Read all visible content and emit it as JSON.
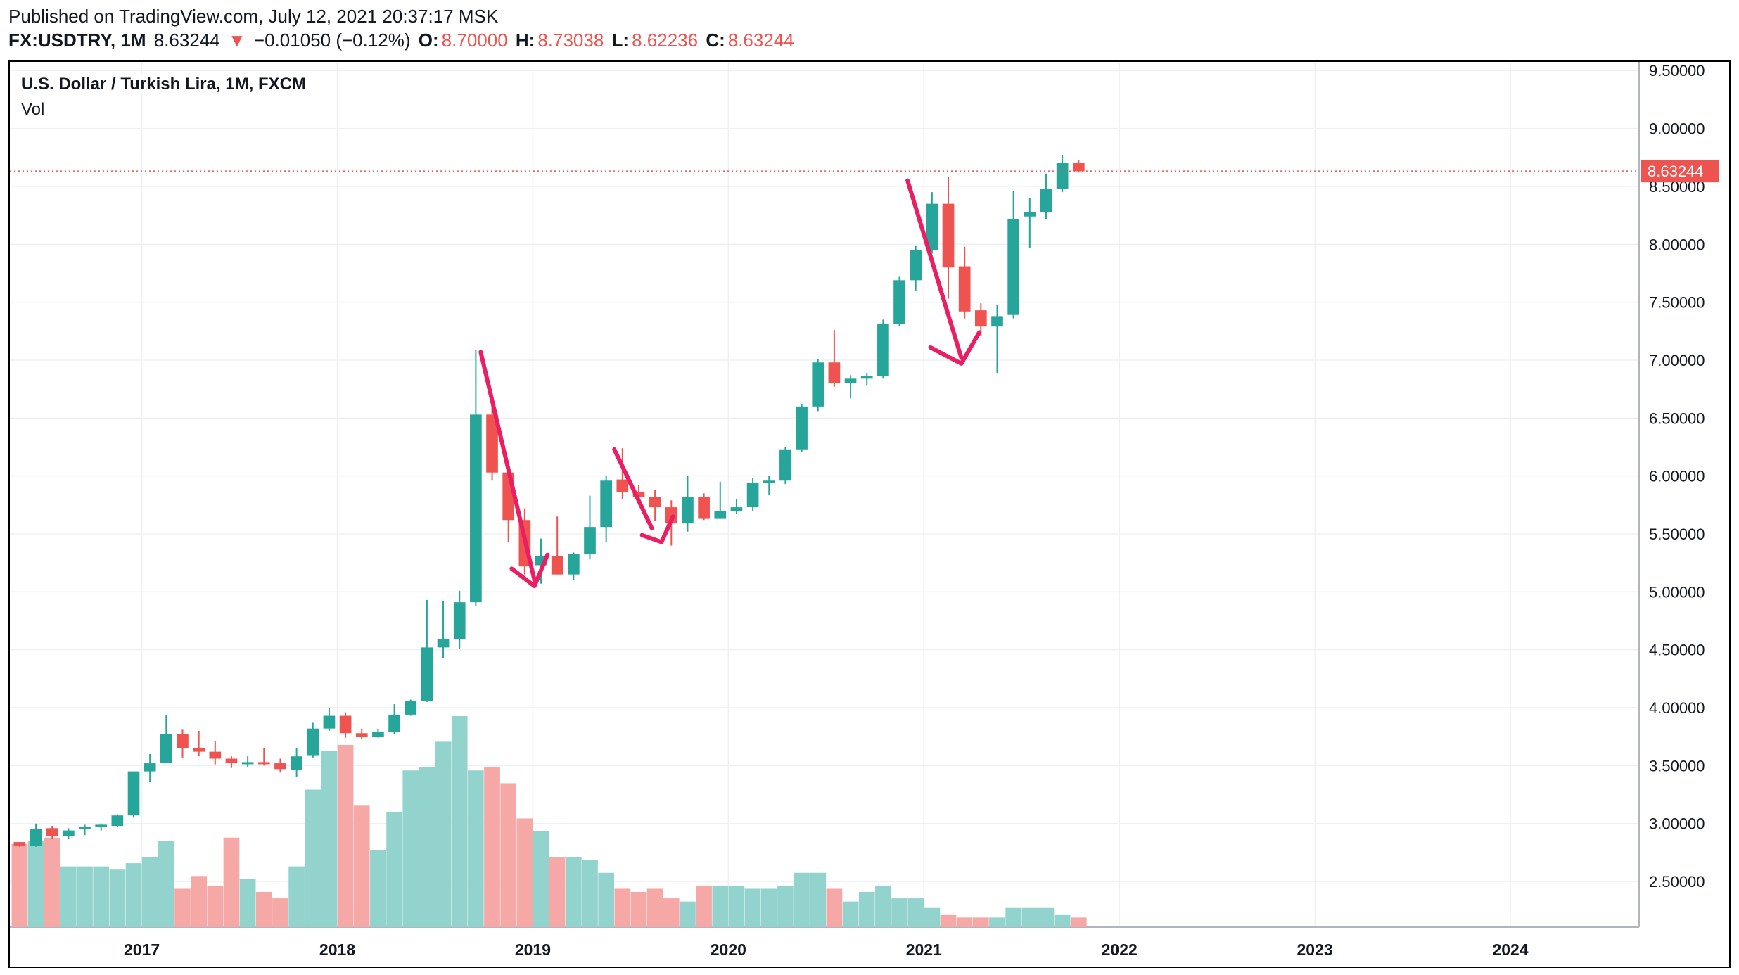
{
  "header": {
    "published": "Published on TradingView.com, July 12, 2021 20:37:17 MSK",
    "symbol": "FX:USDTRY, 1M",
    "last": "8.63244",
    "change_arrow": "▼",
    "change": "−0.01050 (−0.12%)",
    "open_label": "O:",
    "open": "8.70000",
    "high_label": "H:",
    "high": "8.73038",
    "low_label": "L:",
    "low": "8.62236",
    "close_label": "C:",
    "close": "8.63244"
  },
  "legend": {
    "title": "U.S. Dollar / Turkish Lira, 1M, FXCM",
    "vol": "Vol"
  },
  "colors": {
    "up": "#26a69a",
    "down": "#ef5350",
    "vol_up": "#93d3cd",
    "vol_down": "#f5a8a6",
    "annotation": "#e91e63",
    "grid": "#eef0f3"
  },
  "chart_data": {
    "type": "candlestick",
    "title": "U.S. Dollar / Turkish Lira, 1M, FXCM",
    "current_price_label": "8.63244",
    "current_price": 8.63244,
    "y_ticks": [
      "9.50000",
      "9.00000",
      "8.50000",
      "8.00000",
      "7.50000",
      "7.00000",
      "6.50000",
      "6.00000",
      "5.50000",
      "5.00000",
      "4.50000",
      "4.00000",
      "3.50000",
      "3.00000",
      "2.50000"
    ],
    "y_tick_values": [
      9.5,
      9.0,
      8.5,
      8.0,
      7.5,
      7.0,
      6.5,
      6.0,
      5.5,
      5.0,
      4.5,
      4.0,
      3.5,
      3.0,
      2.5
    ],
    "ylim": [
      2.13,
      9.55
    ],
    "x_ticks": [
      "2017",
      "2018",
      "2019",
      "2020",
      "2021",
      "2022",
      "2023",
      "2024"
    ],
    "x_tick_indices": [
      8,
      20,
      32,
      44,
      56,
      68,
      80,
      92
    ],
    "x_index_range": [
      -0.6,
      99.4
    ],
    "candles": [
      [
        2.84,
        2.84,
        2.8,
        2.81,
        26
      ],
      [
        2.81,
        3.0,
        2.8,
        2.95,
        27
      ],
      [
        2.96,
        2.98,
        2.87,
        2.89,
        28
      ],
      [
        2.89,
        2.96,
        2.87,
        2.94,
        19
      ],
      [
        2.95,
        2.99,
        2.9,
        2.97,
        19
      ],
      [
        2.97,
        3.0,
        2.94,
        2.99,
        19
      ],
      [
        2.98,
        3.08,
        2.97,
        3.07,
        18
      ],
      [
        3.07,
        3.45,
        3.05,
        3.45,
        20
      ],
      [
        3.45,
        3.6,
        3.36,
        3.52,
        22
      ],
      [
        3.52,
        3.94,
        3.52,
        3.77,
        27
      ],
      [
        3.77,
        3.81,
        3.57,
        3.65,
        12
      ],
      [
        3.65,
        3.8,
        3.58,
        3.62,
        16
      ],
      [
        3.62,
        3.71,
        3.51,
        3.56,
        13
      ],
      [
        3.56,
        3.58,
        3.48,
        3.52,
        28
      ],
      [
        3.52,
        3.58,
        3.49,
        3.53,
        15
      ],
      [
        3.53,
        3.65,
        3.5,
        3.52,
        11
      ],
      [
        3.52,
        3.56,
        3.44,
        3.47,
        9
      ],
      [
        3.46,
        3.65,
        3.4,
        3.58,
        19
      ],
      [
        3.59,
        3.87,
        3.57,
        3.82,
        43
      ],
      [
        3.82,
        4.0,
        3.8,
        3.93,
        55
      ],
      [
        3.93,
        3.96,
        3.74,
        3.78,
        57
      ],
      [
        3.78,
        3.82,
        3.73,
        3.75,
        38
      ],
      [
        3.75,
        3.82,
        3.74,
        3.79,
        24
      ],
      [
        3.79,
        4.03,
        3.77,
        3.94,
        36
      ],
      [
        3.94,
        4.07,
        3.93,
        4.06,
        49
      ],
      [
        4.06,
        4.93,
        4.05,
        4.52,
        50
      ],
      [
        4.52,
        4.92,
        4.43,
        4.59,
        58
      ],
      [
        4.59,
        5.01,
        4.51,
        4.91,
        66
      ],
      [
        4.91,
        7.09,
        4.88,
        6.53,
        49
      ],
      [
        6.53,
        6.72,
        5.96,
        6.03,
        50
      ],
      [
        6.03,
        6.13,
        5.43,
        5.62,
        45
      ],
      [
        5.62,
        5.72,
        5.15,
        5.22,
        34
      ],
      [
        5.23,
        5.46,
        5.07,
        5.31,
        30
      ],
      [
        5.31,
        5.65,
        5.15,
        5.15,
        22
      ],
      [
        5.15,
        5.34,
        5.1,
        5.33,
        22
      ],
      [
        5.33,
        5.83,
        5.28,
        5.56,
        21
      ],
      [
        5.56,
        6.0,
        5.43,
        5.96,
        17
      ],
      [
        5.97,
        6.24,
        5.8,
        5.86,
        12
      ],
      [
        5.86,
        5.92,
        5.76,
        5.82,
        11
      ],
      [
        5.82,
        5.88,
        5.61,
        5.73,
        12
      ],
      [
        5.73,
        5.79,
        5.4,
        5.59,
        9
      ],
      [
        5.59,
        6.0,
        5.52,
        5.82,
        8
      ],
      [
        5.82,
        5.85,
        5.62,
        5.63,
        13
      ],
      [
        5.63,
        5.95,
        5.63,
        5.7,
        13
      ],
      [
        5.7,
        5.8,
        5.67,
        5.73,
        13
      ],
      [
        5.73,
        5.98,
        5.7,
        5.94,
        12
      ],
      [
        5.94,
        6.0,
        5.84,
        5.96,
        12
      ],
      [
        5.96,
        6.25,
        5.93,
        6.23,
        13
      ],
      [
        6.23,
        6.62,
        6.21,
        6.6,
        17
      ],
      [
        6.6,
        7.01,
        6.56,
        6.98,
        17
      ],
      [
        6.98,
        7.26,
        6.77,
        6.8,
        12
      ],
      [
        6.8,
        6.87,
        6.67,
        6.84,
        8
      ],
      [
        6.84,
        6.89,
        6.78,
        6.86,
        11
      ],
      [
        6.86,
        7.35,
        6.84,
        7.31,
        13
      ],
      [
        7.31,
        7.72,
        7.29,
        7.69,
        9
      ],
      [
        7.69,
        7.99,
        7.6,
        7.95,
        9
      ],
      [
        7.95,
        8.45,
        7.92,
        8.35,
        6
      ],
      [
        8.35,
        8.58,
        7.53,
        7.8,
        4
      ],
      [
        7.81,
        7.98,
        7.36,
        7.42,
        3
      ],
      [
        7.43,
        7.49,
        7.21,
        7.29,
        3
      ],
      [
        7.29,
        7.48,
        6.89,
        7.38,
        3
      ],
      [
        7.39,
        8.46,
        7.36,
        8.22,
        6
      ],
      [
        8.24,
        8.4,
        7.97,
        8.28,
        6
      ],
      [
        8.28,
        8.61,
        8.22,
        8.48,
        6
      ],
      [
        8.48,
        8.77,
        8.45,
        8.7,
        4
      ],
      [
        8.7,
        8.73,
        8.62,
        8.63,
        3
      ]
    ],
    "candle_fields": [
      "open",
      "high",
      "low",
      "close",
      "volume"
    ],
    "volume_max": 66,
    "annotations": [
      {
        "type": "line",
        "points": [
          [
            28.3,
            7.07
          ],
          [
            31.6,
            5.1
          ]
        ]
      },
      {
        "type": "line",
        "points": [
          [
            30.2,
            5.2
          ],
          [
            31.6,
            5.05
          ],
          [
            32.4,
            5.32
          ]
        ]
      },
      {
        "type": "line",
        "points": [
          [
            36.5,
            6.23
          ],
          [
            38.8,
            5.55
          ]
        ]
      },
      {
        "type": "line",
        "points": [
          [
            38.2,
            5.49
          ],
          [
            39.4,
            5.43
          ],
          [
            40.1,
            5.65
          ]
        ]
      },
      {
        "type": "line",
        "points": [
          [
            54.5,
            8.55
          ],
          [
            57.8,
            7.02
          ]
        ]
      },
      {
        "type": "line",
        "points": [
          [
            55.9,
            7.11
          ],
          [
            57.8,
            6.97
          ],
          [
            58.9,
            7.24
          ]
        ]
      }
    ]
  }
}
